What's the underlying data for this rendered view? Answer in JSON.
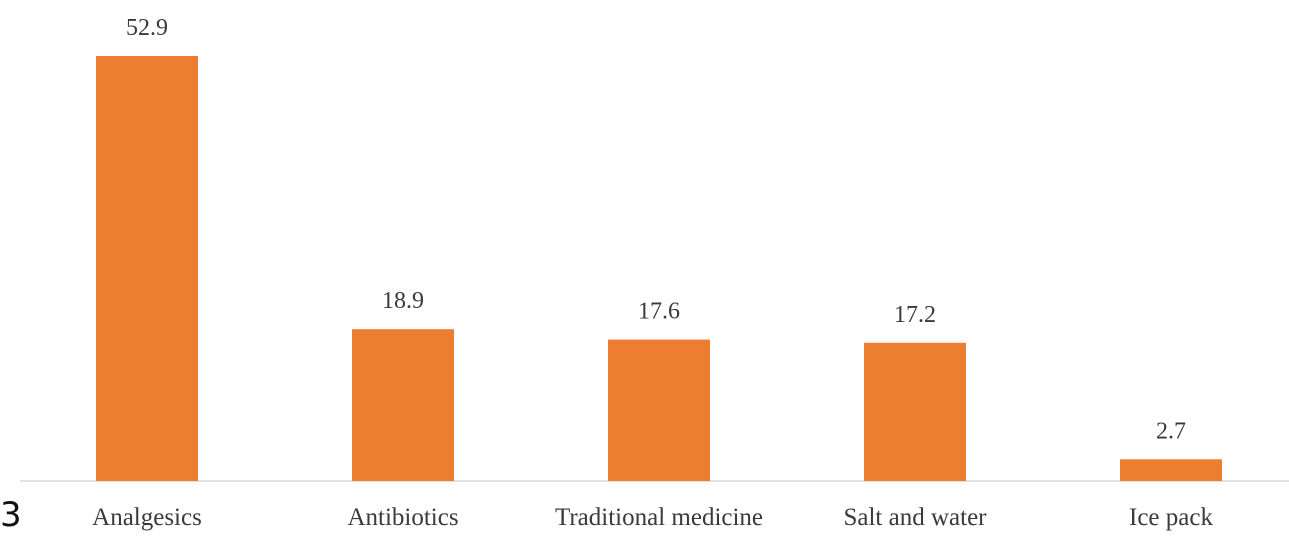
{
  "corner_text": "3",
  "chart_data": {
    "type": "bar",
    "categories": [
      "Analgesics",
      "Antibiotics",
      "Traditional medicine",
      "Salt and water",
      "Ice pack"
    ],
    "values": [
      52.9,
      18.9,
      17.6,
      17.2,
      2.7
    ],
    "value_labels": [
      "52.9",
      "18.9",
      "17.6",
      "17.2",
      "2.7"
    ],
    "title": "",
    "xlabel": "",
    "ylabel": "",
    "ylim": [
      0,
      52.9
    ],
    "grid": false,
    "legend": "none",
    "colors": {
      "bar": "#ED7D31",
      "axis": "#D9D9D9"
    }
  }
}
